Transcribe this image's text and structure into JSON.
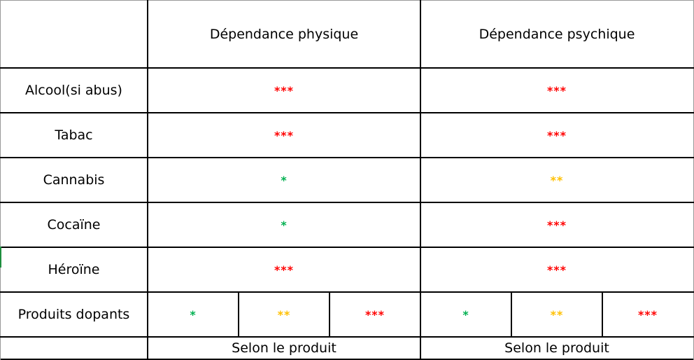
{
  "headers": [
    "Dépendance physique",
    "Dépendance psychique"
  ],
  "rows": [
    {
      "label": "Alcool(si abus)",
      "physique": "***",
      "psychique": "***"
    },
    {
      "label": "Tabac",
      "physique": "***",
      "psychique": "***"
    },
    {
      "label": "Cannabis",
      "physique": "*",
      "psychique": "**"
    },
    {
      "label": "Cocaïne",
      "physique": "*",
      "psychique": "***"
    },
    {
      "label": "Héroïne",
      "physique": "***",
      "psychique": "***"
    }
  ],
  "dopants": {
    "label": "Produits dopants",
    "physique": [
      "*",
      "**",
      "***"
    ],
    "psychique": [
      "*",
      "**",
      "***"
    ]
  },
  "footer": [
    "Selon le produit",
    "Selon le produit"
  ],
  "colors": {
    "*": "#00b050",
    "**": "#ffc000",
    "***": "#ff0000"
  }
}
